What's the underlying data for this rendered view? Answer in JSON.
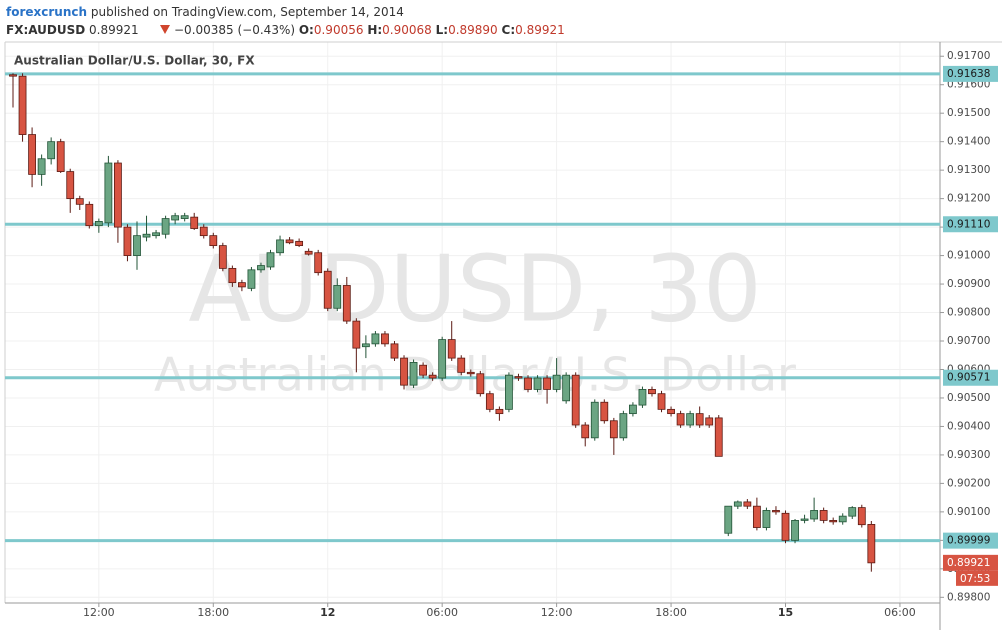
{
  "header": {
    "author": "forexcrunch",
    "published": "published on TradingView.com, September 14, 2014",
    "symbol": "FX:AUDUSD",
    "last": "0.89921",
    "change": "−0.00385 (−0.43%)",
    "o_label": "O:",
    "o": "0.90056",
    "h_label": "H:",
    "h": "0.90068",
    "l_label": "L:",
    "l": "0.89890",
    "c_label": "C:",
    "c": "0.89921"
  },
  "chart_data": {
    "type": "candlestick",
    "title": "Australian Dollar/U.S. Dollar, 30, FX",
    "watermark": "AUDUSD, 30",
    "watermark_subtitle": "Australian Dollar/U.S. Dollar",
    "up_color": "#6ba583",
    "down_color": "#d75442",
    "level_color": "#7ec8cc",
    "grid": true,
    "open": [
      0.91635,
      0.9163,
      0.91425,
      0.91285,
      0.9134,
      0.914,
      0.91295,
      0.912,
      0.9118,
      0.91105,
      0.91115,
      0.91325,
      0.911,
      0.91,
      0.91065,
      0.9107,
      0.91075,
      0.91125,
      0.9113,
      0.91135,
      0.911,
      0.9107,
      0.91035,
      0.90955,
      0.90905,
      0.90885,
      0.9095,
      0.9096,
      0.9101,
      0.91055,
      0.9105,
      0.91015,
      0.9101,
      0.90945,
      0.90815,
      0.90895,
      0.9077,
      0.9068,
      0.9069,
      0.90725,
      0.9069,
      0.9064,
      0.90545,
      0.90615,
      0.9058,
      0.9057,
      0.90705,
      0.9064,
      0.9059,
      0.90585,
      0.90515,
      0.9046,
      0.9046,
      0.90575,
      0.9057,
      0.9053,
      0.9057,
      0.9053,
      0.9049,
      0.9058,
      0.90405,
      0.9036,
      0.90485,
      0.9042,
      0.9036,
      0.90445,
      0.90475,
      0.9053,
      0.90515,
      0.9046,
      0.90445,
      0.90405,
      0.90445,
      0.9043,
      0.9043,
      0.90025,
      0.9012,
      0.90135,
      0.9012,
      0.90045,
      0.90105,
      0.90095,
      0.9,
      0.9007,
      0.90075,
      0.90105,
      0.9007,
      0.90065,
      0.90085,
      0.90115,
      0.90056
    ],
    "high": [
      0.9164,
      0.9164,
      0.9145,
      0.91355,
      0.91415,
      0.9141,
      0.91305,
      0.9121,
      0.9119,
      0.9113,
      0.9135,
      0.91335,
      0.9111,
      0.9112,
      0.9114,
      0.9109,
      0.9114,
      0.9115,
      0.9115,
      0.9115,
      0.9111,
      0.9108,
      0.91045,
      0.90965,
      0.90915,
      0.9096,
      0.90975,
      0.9102,
      0.9107,
      0.91065,
      0.9106,
      0.91025,
      0.9102,
      0.90955,
      0.9092,
      0.90925,
      0.9078,
      0.9072,
      0.90735,
      0.90735,
      0.907,
      0.9065,
      0.90635,
      0.90625,
      0.9059,
      0.90715,
      0.9077,
      0.9065,
      0.906,
      0.90595,
      0.90525,
      0.9047,
      0.9059,
      0.90585,
      0.9058,
      0.9058,
      0.9058,
      0.9064,
      0.9059,
      0.9059,
      0.90415,
      0.90495,
      0.90495,
      0.9043,
      0.90455,
      0.90485,
      0.9054,
      0.9054,
      0.90525,
      0.9047,
      0.90455,
      0.90455,
      0.9047,
      0.9044,
      0.9044,
      0.9012,
      0.9014,
      0.90145,
      0.9015,
      0.90115,
      0.9012,
      0.90105,
      0.90075,
      0.9009,
      0.9015,
      0.90115,
      0.9008,
      0.90095,
      0.9012,
      0.90125,
      0.90068
    ],
    "low": [
      0.9152,
      0.914,
      0.9124,
      0.91245,
      0.9132,
      0.9129,
      0.9115,
      0.9116,
      0.91095,
      0.9108,
      0.911,
      0.91045,
      0.9098,
      0.9095,
      0.9105,
      0.9106,
      0.9106,
      0.9111,
      0.9112,
      0.9109,
      0.9106,
      0.91025,
      0.90945,
      0.9089,
      0.90875,
      0.90875,
      0.9094,
      0.9095,
      0.91,
      0.9104,
      0.9103,
      0.91,
      0.9093,
      0.90805,
      0.90805,
      0.9076,
      0.9059,
      0.9064,
      0.9068,
      0.9068,
      0.9063,
      0.9053,
      0.90535,
      0.9057,
      0.9056,
      0.9056,
      0.9063,
      0.9058,
      0.90575,
      0.90505,
      0.9045,
      0.9042,
      0.9045,
      0.9056,
      0.9052,
      0.9052,
      0.9048,
      0.9052,
      0.9048,
      0.90395,
      0.9033,
      0.9035,
      0.9041,
      0.903,
      0.9035,
      0.90435,
      0.90465,
      0.90505,
      0.9045,
      0.90435,
      0.90395,
      0.90395,
      0.90395,
      0.90395,
      0.90295,
      0.90015,
      0.9011,
      0.9011,
      0.90035,
      0.90035,
      0.9009,
      0.8999,
      0.8999,
      0.9006,
      0.90065,
      0.9006,
      0.90055,
      0.90055,
      0.90075,
      0.90045,
      0.8989
    ],
    "close": [
      0.9163,
      0.91425,
      0.91285,
      0.9134,
      0.914,
      0.91295,
      0.912,
      0.9118,
      0.91105,
      0.9112,
      0.91325,
      0.911,
      0.91,
      0.9107,
      0.91075,
      0.9108,
      0.9113,
      0.9114,
      0.9114,
      0.91095,
      0.9107,
      0.91035,
      0.90955,
      0.90905,
      0.9089,
      0.9095,
      0.90965,
      0.9101,
      0.91055,
      0.91045,
      0.91035,
      0.91005,
      0.9094,
      0.90815,
      0.90895,
      0.9077,
      0.90675,
      0.9069,
      0.90725,
      0.9069,
      0.9064,
      0.90545,
      0.90625,
      0.9058,
      0.9057,
      0.90705,
      0.9064,
      0.9059,
      0.90585,
      0.90515,
      0.9046,
      0.90445,
      0.9058,
      0.9057,
      0.9053,
      0.9057,
      0.9053,
      0.9058,
      0.9058,
      0.90405,
      0.9036,
      0.90485,
      0.9042,
      0.9036,
      0.90445,
      0.90475,
      0.9053,
      0.90515,
      0.9046,
      0.90445,
      0.90405,
      0.90445,
      0.90405,
      0.90405,
      0.90295,
      0.9012,
      0.90135,
      0.9012,
      0.90045,
      0.90105,
      0.901,
      0.9,
      0.9007,
      0.90075,
      0.90105,
      0.9007,
      0.90065,
      0.90085,
      0.90115,
      0.90055,
      0.89921
    ],
    "xlim": [
      -0.84,
      97.2
    ],
    "xticks": [
      {
        "value": 9,
        "label": "12:00"
      },
      {
        "value": 21,
        "label": "18:00"
      },
      {
        "value": 33,
        "label": "12",
        "bold": true
      },
      {
        "value": 45,
        "label": "06:00"
      },
      {
        "value": 57,
        "label": "12:00"
      },
      {
        "value": 69,
        "label": "18:00"
      },
      {
        "value": 81,
        "label": "15",
        "bold": true
      },
      {
        "value": 93,
        "label": "06:00"
      }
    ],
    "ylim": [
      0.8978,
      0.9175
    ],
    "yticks": [
      {
        "value": 0.898,
        "label": "0.89800"
      },
      {
        "value": 0.899,
        "label": "0.89900"
      },
      {
        "value": 0.9,
        "label": "0.90000"
      },
      {
        "value": 0.901,
        "label": "0.90100"
      },
      {
        "value": 0.902,
        "label": "0.90200"
      },
      {
        "value": 0.903,
        "label": "0.90300"
      },
      {
        "value": 0.904,
        "label": "0.90400"
      },
      {
        "value": 0.905,
        "label": "0.90500"
      },
      {
        "value": 0.906,
        "label": "0.90600"
      },
      {
        "value": 0.907,
        "label": "0.90700"
      },
      {
        "value": 0.908,
        "label": "0.90800"
      },
      {
        "value": 0.909,
        "label": "0.90900"
      },
      {
        "value": 0.91,
        "label": "0.91000"
      },
      {
        "value": 0.911,
        "label": "0.91100"
      },
      {
        "value": 0.912,
        "label": "0.91200"
      },
      {
        "value": 0.913,
        "label": "0.91300"
      },
      {
        "value": 0.914,
        "label": "0.91400"
      },
      {
        "value": 0.915,
        "label": "0.91500"
      },
      {
        "value": 0.916,
        "label": "0.91600"
      },
      {
        "value": 0.917,
        "label": "0.91700"
      }
    ],
    "levels": [
      0.91638,
      {
        "value": 0.9111,
        "label": "0.91110"
      },
      0.90571,
      0.89999
    ],
    "countdown": "07:53"
  }
}
